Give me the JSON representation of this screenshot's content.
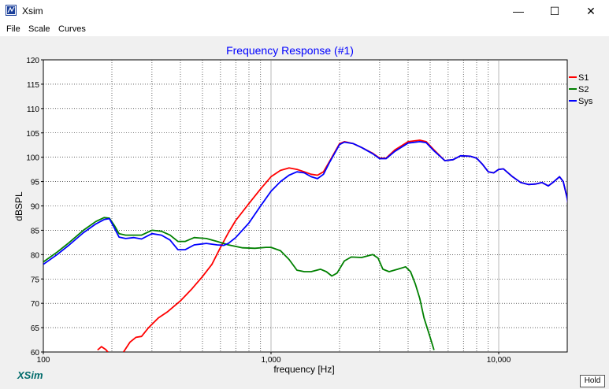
{
  "window": {
    "title": "Xsim",
    "minimize": "—",
    "maximize": "☐",
    "close": "✕"
  },
  "menu": [
    {
      "label": "File"
    },
    {
      "label": "Scale"
    },
    {
      "label": "Curves"
    }
  ],
  "hold_label": "Hold",
  "logo_text": "XSim",
  "colors": {
    "s1": "#ff0000",
    "s2": "#008000",
    "sys": "#0000ff",
    "title": "#0000ff",
    "logo": "#006b6b"
  },
  "chart_data": {
    "type": "line",
    "title": "Frequency Response (#1)",
    "xlabel": "frequency [Hz]",
    "ylabel": "dBSPL",
    "xscale": "log",
    "xlim": [
      100,
      20000
    ],
    "ylim": [
      60,
      120
    ],
    "yticks": [
      60,
      65,
      70,
      75,
      80,
      85,
      90,
      95,
      100,
      105,
      110,
      115,
      120
    ],
    "xticks": [
      {
        "value": 100,
        "label": "100"
      },
      {
        "value": 1000,
        "label": "1,000"
      },
      {
        "value": 10000,
        "label": "10,000"
      }
    ],
    "grid": true,
    "legend_position": "top-right",
    "series": [
      {
        "name": "S1",
        "color": "#ff0000",
        "segments": [
          [
            [
              173,
              60.4
            ],
            [
              180,
              61.1
            ],
            [
              188,
              60.5
            ],
            [
              192,
              60
            ]
          ],
          [
            [
              225,
              60
            ],
            [
              240,
              62
            ],
            [
              255,
              63
            ],
            [
              270,
              63.2
            ],
            [
              290,
              65
            ],
            [
              320,
              67
            ],
            [
              350,
              68.2
            ],
            [
              400,
              70.5
            ],
            [
              450,
              73
            ],
            [
              500,
              75.5
            ],
            [
              550,
              78
            ],
            [
              600,
              81.5
            ],
            [
              650,
              84.5
            ],
            [
              700,
              87
            ],
            [
              800,
              90.5
            ],
            [
              900,
              93.5
            ],
            [
              1000,
              96
            ],
            [
              1100,
              97.3
            ],
            [
              1200,
              97.8
            ],
            [
              1300,
              97.5
            ],
            [
              1400,
              97
            ],
            [
              1500,
              96.5
            ],
            [
              1600,
              96.3
            ],
            [
              1700,
              97
            ],
            [
              1800,
              99
            ],
            [
              2000,
              102.8
            ],
            [
              2100,
              103.2
            ],
            [
              2300,
              102.8
            ],
            [
              2500,
              102
            ],
            [
              2800,
              100.8
            ],
            [
              3000,
              99.8
            ],
            [
              3200,
              99.8
            ],
            [
              3500,
              101.5
            ],
            [
              4000,
              103.2
            ],
            [
              4500,
              103.5
            ],
            [
              4800,
              103.2
            ],
            [
              5200,
              101.5
            ],
            [
              5800,
              99.3
            ],
            [
              6300,
              99.5
            ],
            [
              6800,
              100.3
            ],
            [
              7500,
              100.2
            ],
            [
              8000,
              99.8
            ],
            [
              8500,
              98.5
            ],
            [
              9000,
              97
            ],
            [
              9500,
              96.8
            ],
            [
              10000,
              97.5
            ],
            [
              10500,
              97.6
            ],
            [
              11500,
              96
            ],
            [
              12500,
              94.8
            ],
            [
              13500,
              94.4
            ],
            [
              14500,
              94.5
            ],
            [
              15500,
              94.8
            ],
            [
              16500,
              94.1
            ],
            [
              17500,
              95
            ],
            [
              18500,
              96
            ],
            [
              19200,
              95
            ],
            [
              20000,
              91.5
            ],
            [
              20500,
              88
            ]
          ]
        ]
      },
      {
        "name": "S2",
        "color": "#008000",
        "segments": [
          [
            [
              100,
              78.5
            ],
            [
              115,
              80.5
            ],
            [
              130,
              82.5
            ],
            [
              150,
              85
            ],
            [
              170,
              86.8
            ],
            [
              185,
              87.6
            ],
            [
              195,
              87.5
            ],
            [
              205,
              86
            ],
            [
              215,
              84.3
            ],
            [
              230,
              84
            ],
            [
              250,
              84
            ],
            [
              270,
              84
            ],
            [
              300,
              85
            ],
            [
              330,
              84.8
            ],
            [
              360,
              84
            ],
            [
              390,
              82.7
            ],
            [
              420,
              82.7
            ],
            [
              460,
              83.5
            ],
            [
              520,
              83.3
            ],
            [
              580,
              82.7
            ],
            [
              650,
              82
            ],
            [
              750,
              81.4
            ],
            [
              850,
              81.3
            ],
            [
              950,
              81.5
            ],
            [
              1000,
              81.5
            ],
            [
              1100,
              80.8
            ],
            [
              1200,
              79
            ],
            [
              1300,
              76.8
            ],
            [
              1400,
              76.5
            ],
            [
              1500,
              76.5
            ],
            [
              1650,
              77
            ],
            [
              1750,
              76.5
            ],
            [
              1850,
              75.6
            ],
            [
              1950,
              76.2
            ],
            [
              2100,
              78.7
            ],
            [
              2250,
              79.5
            ],
            [
              2500,
              79.4
            ],
            [
              2800,
              80
            ],
            [
              2950,
              79.3
            ],
            [
              3100,
              77
            ],
            [
              3300,
              76.5
            ],
            [
              3600,
              77
            ],
            [
              3900,
              77.5
            ],
            [
              4100,
              76.5
            ],
            [
              4300,
              74
            ],
            [
              4500,
              71
            ],
            [
              4700,
              67
            ],
            [
              5000,
              63
            ],
            [
              5200,
              60.4
            ]
          ]
        ]
      },
      {
        "name": "Sys",
        "color": "#0000ff",
        "segments": [
          [
            [
              100,
              78
            ],
            [
              115,
              80
            ],
            [
              130,
              82
            ],
            [
              150,
              84.5
            ],
            [
              170,
              86.3
            ],
            [
              185,
              87.2
            ],
            [
              195,
              87.4
            ],
            [
              205,
              85.5
            ],
            [
              215,
              83.6
            ],
            [
              230,
              83.3
            ],
            [
              250,
              83.5
            ],
            [
              270,
              83.2
            ],
            [
              300,
              84.3
            ],
            [
              330,
              84
            ],
            [
              360,
              83
            ],
            [
              390,
              81
            ],
            [
              420,
              81
            ],
            [
              460,
              82
            ],
            [
              520,
              82.3
            ],
            [
              580,
              82
            ],
            [
              620,
              81.9
            ],
            [
              650,
              82.3
            ],
            [
              700,
              83.5
            ],
            [
              800,
              86.5
            ],
            [
              900,
              90
            ],
            [
              1000,
              93
            ],
            [
              1100,
              95
            ],
            [
              1200,
              96.3
            ],
            [
              1300,
              97
            ],
            [
              1400,
              96.8
            ],
            [
              1500,
              96
            ],
            [
              1600,
              95.6
            ],
            [
              1700,
              96.5
            ],
            [
              1800,
              98.8
            ],
            [
              2000,
              102.6
            ],
            [
              2100,
              103.1
            ],
            [
              2300,
              102.8
            ],
            [
              2500,
              102
            ],
            [
              2800,
              100.7
            ],
            [
              3000,
              99.7
            ],
            [
              3200,
              99.7
            ],
            [
              3500,
              101.2
            ],
            [
              4000,
              102.9
            ],
            [
              4500,
              103.2
            ],
            [
              4800,
              103
            ],
            [
              5200,
              101.3
            ],
            [
              5800,
              99.3
            ],
            [
              6300,
              99.5
            ],
            [
              6800,
              100.3
            ],
            [
              7500,
              100.2
            ],
            [
              8000,
              99.8
            ],
            [
              8500,
              98.5
            ],
            [
              9000,
              97
            ],
            [
              9500,
              96.8
            ],
            [
              10000,
              97.5
            ],
            [
              10500,
              97.6
            ],
            [
              11500,
              96
            ],
            [
              12500,
              94.8
            ],
            [
              13500,
              94.4
            ],
            [
              14500,
              94.5
            ],
            [
              15500,
              94.8
            ],
            [
              16500,
              94.1
            ],
            [
              17500,
              95
            ],
            [
              18500,
              96
            ],
            [
              19200,
              95
            ],
            [
              20000,
              91.5
            ],
            [
              20500,
              88
            ]
          ]
        ]
      }
    ]
  }
}
